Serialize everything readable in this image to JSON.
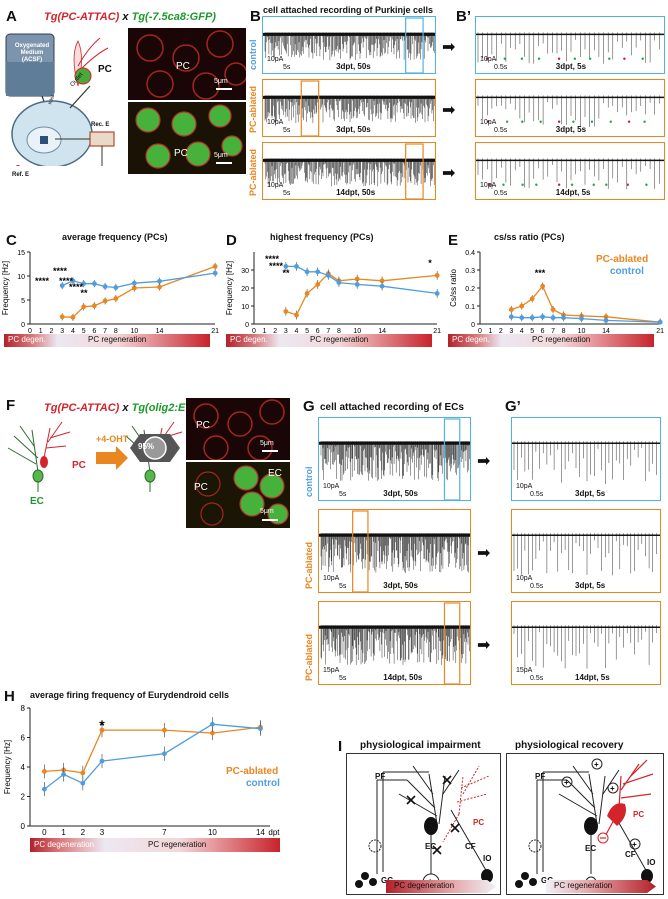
{
  "panelA": {
    "label": "A",
    "title_left": "Tg(PC-ATTAC)",
    "title_x": "x",
    "title_right": "Tg(-7.5ca8:GFP)",
    "medium_label": "Oxygenated Medium (ACSF)",
    "inlet": "Inlet",
    "outlet": "Outlet",
    "rec_e": "Rec. E",
    "ref_e": "Ref. E",
    "pc": "PC",
    "img_pc1": "PC",
    "img_pc2": "PC",
    "scale1": "5μm",
    "scale2": "5μm"
  },
  "panelB": {
    "label": "B",
    "title": "cell attached recording of Purkinje cells",
    "rows": [
      {
        "cond": "control",
        "scale_pa": "10pA",
        "scale_t": "5s",
        "time": "3dpt, 50s"
      },
      {
        "cond": "PC-ablated",
        "scale_pa": "10pA",
        "scale_t": "5s",
        "time": "3dpt, 50s"
      },
      {
        "cond": "PC-ablated",
        "scale_pa": "10pA",
        "scale_t": "5s",
        "time": "14dpt, 50s"
      }
    ]
  },
  "panelB2": {
    "label": "B’",
    "rows": [
      {
        "cond": "control",
        "scale_pa": "10pA",
        "scale_t": "0.5s",
        "time": "3dpt, 5s"
      },
      {
        "cond": "PC-ablated",
        "scale_pa": "10pA",
        "scale_t": "0.5s",
        "time": "3dpt, 5s"
      },
      {
        "cond": "PC-ablated",
        "scale_pa": "10pA",
        "scale_t": "0.5s",
        "time": "14dpt, 5s"
      }
    ]
  },
  "panelC": {
    "label": "C",
    "chart_data": {
      "type": "line",
      "title": "average frequency (PCs)",
      "ylabel": "Frequency [Hz]",
      "xunit": "dpt",
      "xticks": [
        0,
        1,
        2,
        3,
        4,
        5,
        6,
        7,
        8,
        10,
        14,
        21
      ],
      "yticks": [
        0,
        5,
        10,
        15
      ],
      "ylim": [
        0,
        15
      ],
      "significance": [
        "****",
        "****",
        "****",
        "****",
        "**"
      ],
      "series": [
        {
          "name": "PC-ablated",
          "color": "#e9861f",
          "x": [
            3,
            4,
            5,
            6,
            7,
            8,
            10,
            14,
            21
          ],
          "y": [
            1.5,
            1.4,
            3.6,
            3.8,
            4.8,
            5.3,
            7.5,
            7.7,
            12.0
          ]
        },
        {
          "name": "control",
          "color": "#4f9de0",
          "x": [
            3,
            4,
            5,
            6,
            7,
            8,
            10,
            14,
            21
          ],
          "y": [
            8.0,
            9.0,
            8.4,
            8.4,
            7.8,
            7.6,
            8.5,
            8.9,
            10.6
          ]
        }
      ]
    }
  },
  "panelD": {
    "label": "D",
    "chart_data": {
      "type": "line",
      "title": "highest frequency (PCs)",
      "ylabel": "Frequency [Hz]",
      "xunit": "dpt",
      "xticks": [
        0,
        1,
        2,
        3,
        4,
        5,
        6,
        7,
        8,
        10,
        14,
        21
      ],
      "yticks": [
        0,
        10,
        20,
        30
      ],
      "ylim": [
        0,
        40
      ],
      "significance": [
        "****",
        "****",
        "**",
        "*"
      ],
      "series": [
        {
          "name": "PC-ablated",
          "color": "#e9861f",
          "x": [
            3,
            4,
            5,
            6,
            7,
            8,
            10,
            14,
            21
          ],
          "y": [
            7,
            5,
            17,
            22,
            28,
            24,
            25,
            24,
            27
          ]
        },
        {
          "name": "control",
          "color": "#4f9de0",
          "x": [
            3,
            4,
            5,
            6,
            7,
            8,
            10,
            14,
            21
          ],
          "y": [
            32,
            32,
            29,
            29,
            27,
            23,
            22,
            21,
            17
          ]
        }
      ]
    }
  },
  "panelE": {
    "label": "E",
    "chart_data": {
      "type": "line",
      "title": "cs/ss ratio (PCs)",
      "ylabel": "Cs/ss ratio",
      "xunit": "dpt",
      "xticks": [
        0,
        1,
        2,
        3,
        4,
        5,
        6,
        7,
        8,
        10,
        14,
        21
      ],
      "yticks": [
        0,
        0.1,
        0.2,
        0.3,
        0.4
      ],
      "ylim": [
        0,
        0.4
      ],
      "significance": [
        "***"
      ],
      "series": [
        {
          "name": "PC-ablated",
          "color": "#e9861f",
          "x": [
            3,
            4,
            5,
            6,
            7,
            8,
            10,
            14,
            21
          ],
          "y": [
            0.08,
            0.1,
            0.14,
            0.21,
            0.08,
            0.05,
            0.045,
            0.04,
            0.01
          ]
        },
        {
          "name": "control",
          "color": "#4f9de0",
          "x": [
            3,
            4,
            5,
            6,
            7,
            8,
            10,
            14,
            21
          ],
          "y": [
            0.04,
            0.035,
            0.035,
            0.04,
            0.035,
            0.035,
            0.03,
            0.02,
            0.01
          ]
        }
      ]
    }
  },
  "timeline": {
    "degen": "PC degen.",
    "regen": "PC regeneration",
    "degeneration": "PC degeneration"
  },
  "panelF": {
    "label": "F",
    "title_left": "Tg(PC-ATTAC)",
    "title_x": "x",
    "title_right": "Tg(olig2:EGFP)",
    "treatment": "+4-OHT",
    "percent": "95%",
    "pc": "PC",
    "ec": "EC",
    "img_pc1": "PC",
    "img_pc2": "PC",
    "img_ec": "EC",
    "scale1": "5μm",
    "scale2": "5μm"
  },
  "panelG": {
    "label": "G",
    "title": "cell attached recording of ECs",
    "rows": [
      {
        "cond": "control",
        "scale_pa": "10pA",
        "scale_t": "5s",
        "time": "3dpt, 50s"
      },
      {
        "cond": "PC-ablated",
        "scale_pa": "10pA",
        "scale_t": "5s",
        "time": "3dpt, 50s"
      },
      {
        "cond": "PC-ablated",
        "scale_pa": "15pA",
        "scale_t": "5s",
        "time": "14dpt, 50s"
      }
    ]
  },
  "panelG2": {
    "label": "G’",
    "rows": [
      {
        "cond": "control",
        "scale_pa": "10pA",
        "scale_t": "0.5s",
        "time": "3dpt, 5s"
      },
      {
        "cond": "PC-ablated",
        "scale_pa": "10pA",
        "scale_t": "0.5s",
        "time": "3dpt, 5s"
      },
      {
        "cond": "PC-ablated",
        "scale_pa": "15pA",
        "scale_t": "0.5s",
        "time": "14dpt, 5s"
      }
    ]
  },
  "panelH": {
    "label": "H",
    "chart_data": {
      "type": "line",
      "title": "average firing frequency of Eurydendroid cells",
      "ylabel": "Frequency [Hz]",
      "xunit": "dpt",
      "xticks": [
        0,
        1,
        2,
        3,
        7,
        10,
        14
      ],
      "yticks": [
        0,
        2,
        4,
        6,
        8
      ],
      "ylim": [
        0,
        8
      ],
      "significance": [
        "*"
      ],
      "legend": [
        "PC-ablated",
        "control"
      ],
      "series": [
        {
          "name": "PC-ablated",
          "color": "#e9861f",
          "x": [
            0,
            1,
            2,
            3,
            7,
            10,
            14
          ],
          "y": [
            3.7,
            3.8,
            3.6,
            6.5,
            6.5,
            6.3,
            6.7
          ]
        },
        {
          "name": "control",
          "color": "#4f9de0",
          "x": [
            0,
            1,
            2,
            3,
            7,
            10,
            14
          ],
          "y": [
            2.5,
            3.5,
            2.9,
            4.4,
            4.9,
            6.9,
            6.6
          ]
        }
      ]
    }
  },
  "panelI": {
    "label": "I",
    "left_title": "physiological impairment",
    "right_title": "physiological recovery",
    "labels": {
      "pf": "PF",
      "pc": "PC",
      "cf": "CF",
      "io": "IO",
      "ec": "EC",
      "gc": "GC"
    },
    "left_bar": "PC degeneration",
    "right_bar": "PC regeneration"
  }
}
